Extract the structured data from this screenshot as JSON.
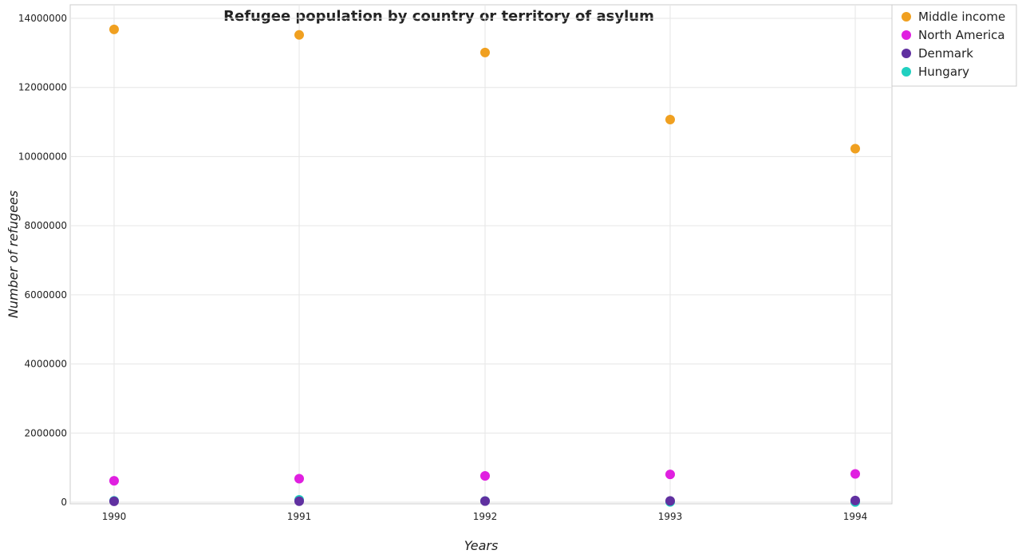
{
  "chart_data": {
    "type": "scatter",
    "title": "Refugee population by country or territory of asylum",
    "xlabel": "Years",
    "ylabel": "Number of refugees",
    "x": [
      "1990",
      "1991",
      "1992",
      "1993",
      "1994"
    ],
    "ylim": [
      0,
      14000000
    ],
    "yticks": [
      0,
      2000000,
      4000000,
      6000000,
      8000000,
      10000000,
      12000000,
      14000000
    ],
    "ytick_labels": [
      "0",
      "2000000",
      "4000000",
      "6000000",
      "8000000",
      "10000000",
      "12000000",
      "14000000"
    ],
    "grid": true,
    "legend_position": "top-right",
    "series": [
      {
        "name": "Middle income",
        "color": "#f0a020",
        "values": [
          13680000,
          13520000,
          13010000,
          11070000,
          10230000
        ]
      },
      {
        "name": "North America",
        "color": "#e020e0",
        "values": [
          620000,
          680000,
          760000,
          805000,
          820000
        ]
      },
      {
        "name": "Denmark",
        "color": "#6030a0",
        "values": [
          25000,
          30000,
          32000,
          38000,
          48000
        ]
      },
      {
        "name": "Hungary",
        "color": "#20d0c0",
        "values": [
          40000,
          68000,
          35000,
          8000,
          5000
        ]
      }
    ]
  }
}
